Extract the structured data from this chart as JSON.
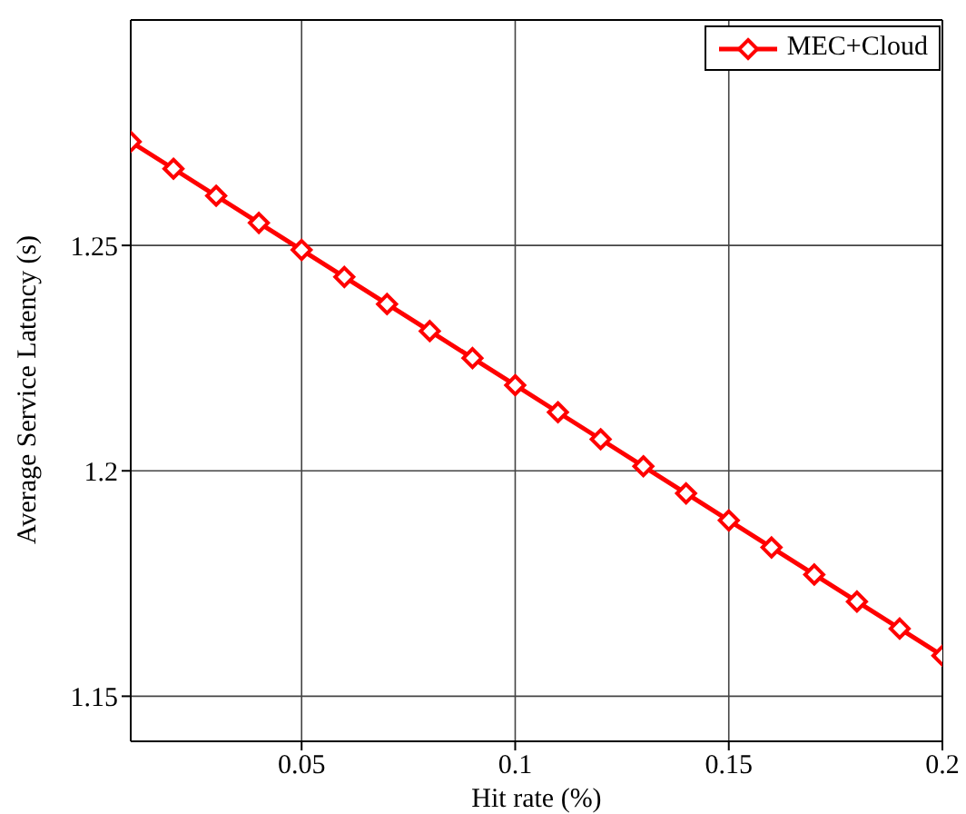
{
  "chart_data": {
    "type": "line",
    "xlabel": "Hit rate (%)",
    "ylabel": "Average Service Latency (s)",
    "x": [
      0.01,
      0.02,
      0.03,
      0.04,
      0.05,
      0.06,
      0.07,
      0.08,
      0.09,
      0.1,
      0.11,
      0.12,
      0.13,
      0.14,
      0.15,
      0.16,
      0.17,
      0.18,
      0.19,
      0.2
    ],
    "series": [
      {
        "name": "MEC+Cloud",
        "color": "#ff0000",
        "values": [
          1.273,
          1.267,
          1.261,
          1.255,
          1.249,
          1.243,
          1.237,
          1.231,
          1.225,
          1.219,
          1.213,
          1.207,
          1.201,
          1.195,
          1.189,
          1.183,
          1.177,
          1.171,
          1.165,
          1.159
        ]
      }
    ],
    "xlim": [
      0.01,
      0.2
    ],
    "xticks": [
      0.05,
      0.1,
      0.15,
      0.2
    ],
    "ylim": [
      1.14,
      1.3
    ],
    "yticks": [
      1.15,
      1.2,
      1.25
    ],
    "grid": true,
    "legend": "top right",
    "marker": "diamond",
    "line_style": "solid"
  }
}
